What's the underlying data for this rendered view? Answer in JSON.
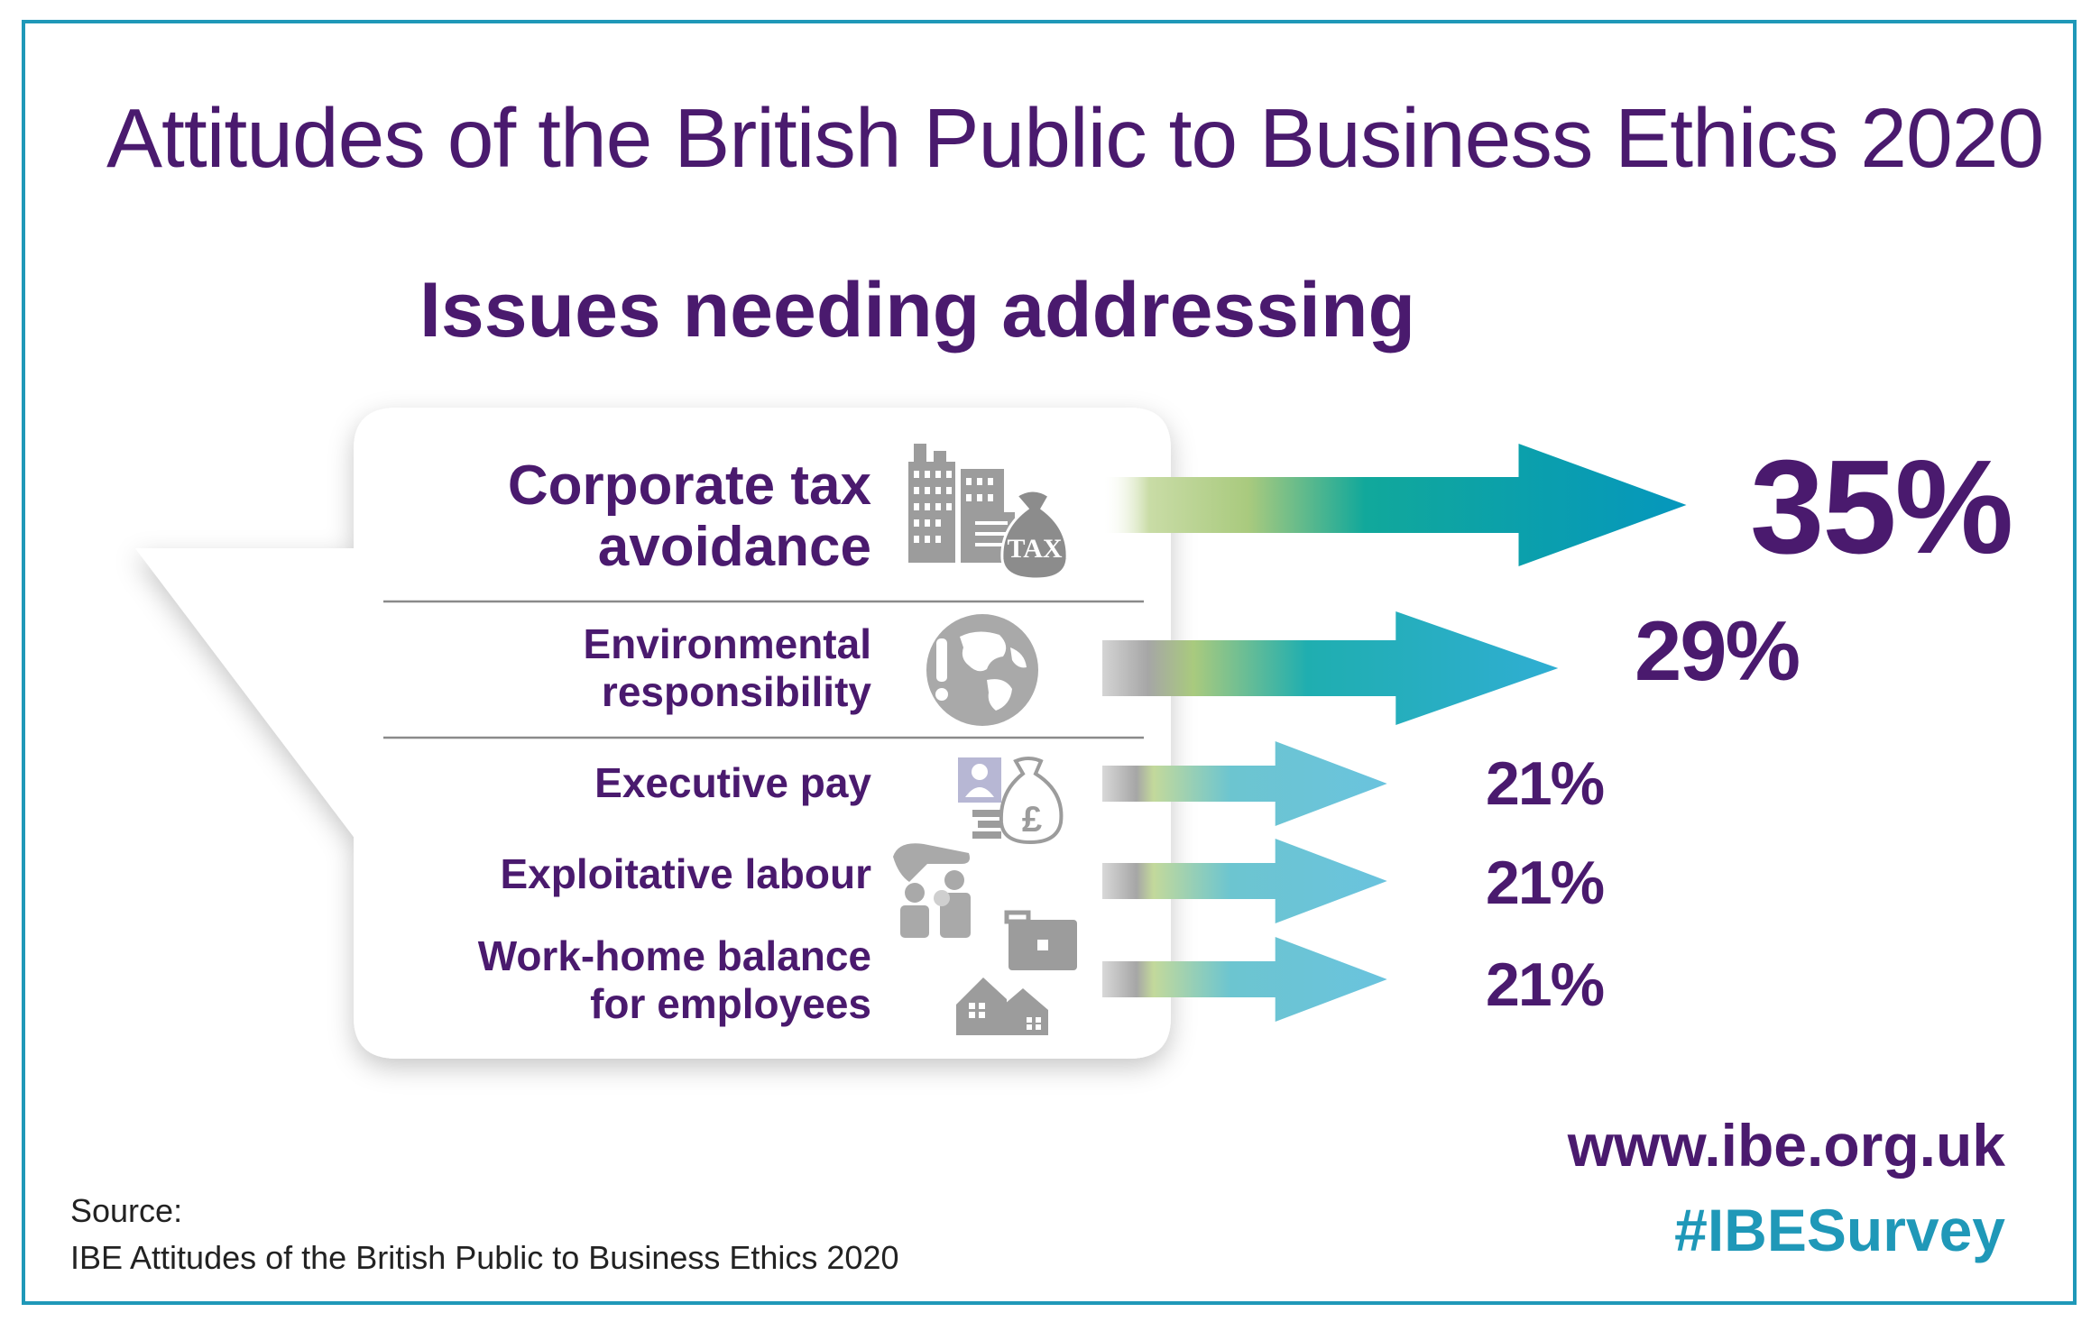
{
  "title": "Attitudes of the British Public to Business Ethics 2020",
  "subtitle": "Issues needing addressing",
  "chart_data": {
    "type": "bar",
    "categories": [
      "Corporate tax avoidance",
      "Environmental responsibility",
      "Executive pay",
      "Exploitative labour",
      "Work-home balance for employees"
    ],
    "values": [
      35,
      29,
      21,
      21,
      21
    ],
    "value_labels": [
      "35%",
      "29%",
      "21%",
      "21%",
      "21%"
    ],
    "label_lines": [
      [
        "Corporate tax",
        "avoidance"
      ],
      [
        "Environmental",
        "responsibility"
      ],
      [
        "Executive pay"
      ],
      [
        "Exploitative labour"
      ],
      [
        "Work-home balance",
        "for employees"
      ]
    ],
    "icons": [
      "buildings-tax-bag-icon",
      "globe-exclamation-icon",
      "executive-money-bag-icon",
      "workers-icon",
      "house-briefcase-icon"
    ]
  },
  "icon_text": {
    "tax": "TAX",
    "pound": "£"
  },
  "source": {
    "heading": "Source:",
    "text": "IBE Attitudes of the British Public to Business Ethics 2020"
  },
  "url": "www.ibe.org.uk",
  "hashtag": "#IBESurvey",
  "colors": {
    "purple": "#4a1a6e",
    "teal": "#1f98b8",
    "arrow_dark": "#0a9fbe",
    "arrow_light": "#6fc3dc",
    "green": "#b5cf8a"
  }
}
